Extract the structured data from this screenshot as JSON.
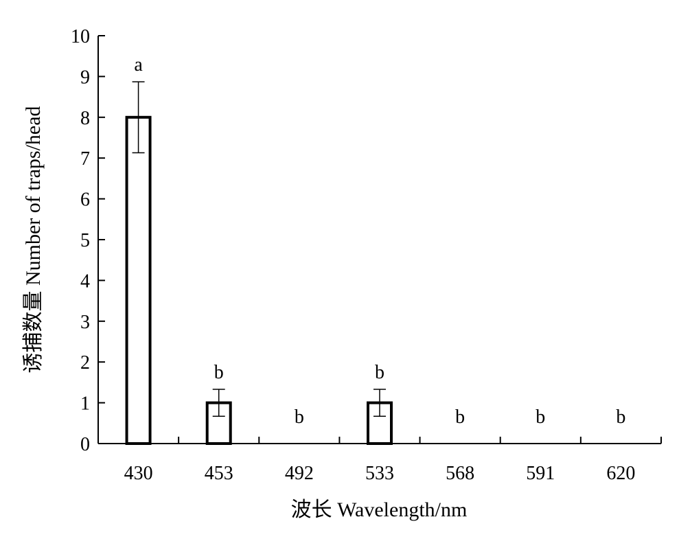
{
  "chart_data": {
    "type": "bar",
    "categories": [
      "430",
      "453",
      "492",
      "533",
      "568",
      "591",
      "620"
    ],
    "values": [
      8,
      1,
      0,
      1,
      0,
      0,
      0
    ],
    "error": [
      0.87,
      0.33,
      0,
      0.33,
      0,
      0,
      0
    ],
    "significance_letters": [
      "a",
      "b",
      "b",
      "b",
      "b",
      "b",
      "b"
    ],
    "xlabel": "波长 Wavelength/nm",
    "ylabel": "诱捕数量 Number of traps/head",
    "ylim": [
      0,
      10
    ],
    "yticks": [
      0,
      1,
      2,
      3,
      4,
      5,
      6,
      7,
      8,
      9,
      10
    ],
    "grid": false,
    "colors": {
      "bar_fill": "#ffffff",
      "bar_stroke": "#000000",
      "axis": "#000000"
    }
  }
}
